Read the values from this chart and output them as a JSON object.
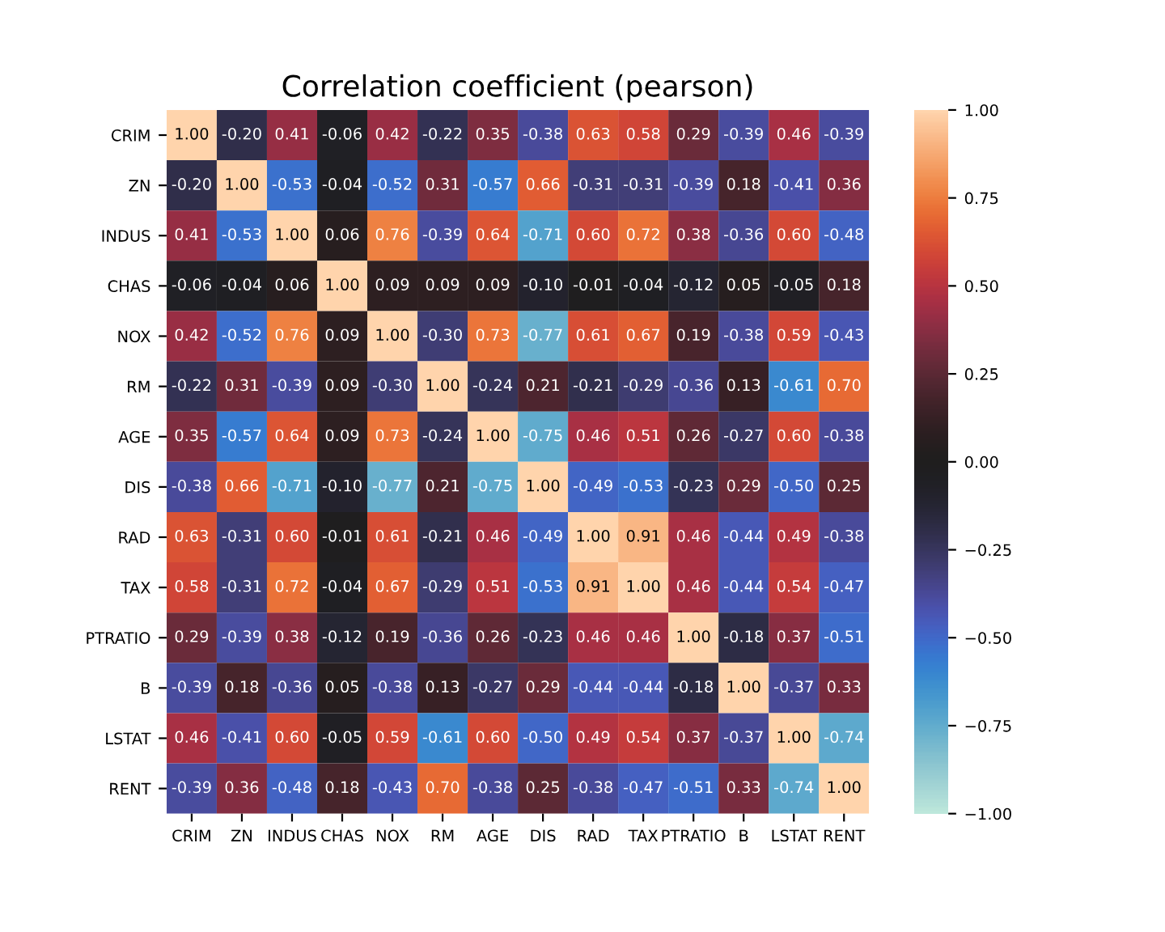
{
  "chart_data": {
    "type": "heatmap",
    "title": "Correlation coefficient (pearson)",
    "categories": [
      "CRIM",
      "ZN",
      "INDUS",
      "CHAS",
      "NOX",
      "RM",
      "AGE",
      "DIS",
      "RAD",
      "TAX",
      "PTRATIO",
      "B",
      "LSTAT",
      "RENT"
    ],
    "y_categories": [
      "CRIM",
      "ZN",
      "INDUS",
      "CHAS",
      "NOX",
      "RM",
      "AGE",
      "DIS",
      "RAD",
      "TAX",
      "PTRATIO",
      "B",
      "LSTAT",
      "RENT"
    ],
    "cells": [
      [
        1.0,
        -0.2,
        0.41,
        -0.06,
        0.42,
        -0.22,
        0.35,
        -0.38,
        0.63,
        0.58,
        0.29,
        -0.39,
        0.46,
        -0.39
      ],
      [
        -0.2,
        1.0,
        -0.53,
        -0.04,
        -0.52,
        0.31,
        -0.57,
        0.66,
        -0.31,
        -0.31,
        -0.39,
        0.18,
        -0.41,
        0.36
      ],
      [
        0.41,
        -0.53,
        1.0,
        0.06,
        0.76,
        -0.39,
        0.64,
        -0.71,
        0.6,
        0.72,
        0.38,
        -0.36,
        0.6,
        -0.48
      ],
      [
        -0.06,
        -0.04,
        0.06,
        1.0,
        0.09,
        0.09,
        0.09,
        -0.1,
        -0.01,
        -0.04,
        -0.12,
        0.05,
        -0.05,
        0.18
      ],
      [
        0.42,
        -0.52,
        0.76,
        0.09,
        1.0,
        -0.3,
        0.73,
        -0.77,
        0.61,
        0.67,
        0.19,
        -0.38,
        0.59,
        -0.43
      ],
      [
        -0.22,
        0.31,
        -0.39,
        0.09,
        -0.3,
        1.0,
        -0.24,
        0.21,
        -0.21,
        -0.29,
        -0.36,
        0.13,
        -0.61,
        0.7
      ],
      [
        0.35,
        -0.57,
        0.64,
        0.09,
        0.73,
        -0.24,
        1.0,
        -0.75,
        0.46,
        0.51,
        0.26,
        -0.27,
        0.6,
        -0.38
      ],
      [
        -0.38,
        0.66,
        -0.71,
        -0.1,
        -0.77,
        0.21,
        -0.75,
        1.0,
        -0.49,
        -0.53,
        -0.23,
        0.29,
        -0.5,
        0.25
      ],
      [
        0.63,
        -0.31,
        0.6,
        -0.01,
        0.61,
        -0.21,
        0.46,
        -0.49,
        1.0,
        0.91,
        0.46,
        -0.44,
        0.49,
        -0.38
      ],
      [
        0.58,
        -0.31,
        0.72,
        -0.04,
        0.67,
        -0.29,
        0.51,
        -0.53,
        0.91,
        1.0,
        0.46,
        -0.44,
        0.54,
        -0.47
      ],
      [
        0.29,
        -0.39,
        0.38,
        -0.12,
        0.19,
        -0.36,
        0.26,
        -0.23,
        0.46,
        0.46,
        1.0,
        -0.18,
        0.37,
        -0.51
      ],
      [
        -0.39,
        0.18,
        -0.36,
        0.05,
        -0.38,
        0.13,
        -0.27,
        0.29,
        -0.44,
        -0.44,
        -0.18,
        1.0,
        -0.37,
        0.33
      ],
      [
        0.46,
        -0.41,
        0.6,
        -0.05,
        0.59,
        -0.61,
        0.6,
        -0.5,
        0.49,
        0.54,
        0.37,
        -0.37,
        1.0,
        -0.74
      ],
      [
        -0.39,
        0.36,
        -0.48,
        0.18,
        -0.43,
        0.7,
        -0.38,
        0.25,
        -0.38,
        -0.47,
        -0.51,
        0.33,
        -0.74,
        1.0
      ]
    ],
    "cell_labels": [
      [
        "1.00",
        "-0.20",
        "0.41",
        "-0.06",
        "0.42",
        "-0.22",
        "0.35",
        "-0.38",
        "0.63",
        "0.58",
        "0.29",
        "-0.39",
        "0.46",
        "-0.39"
      ],
      [
        "-0.20",
        "1.00",
        "-0.53",
        "-0.04",
        "-0.52",
        "0.31",
        "-0.57",
        "0.66",
        "-0.31",
        "-0.31",
        "-0.39",
        "0.18",
        "-0.41",
        "0.36"
      ],
      [
        "0.41",
        "-0.53",
        "1.00",
        "0.06",
        "0.76",
        "-0.39",
        "0.64",
        "-0.71",
        "0.60",
        "0.72",
        "0.38",
        "-0.36",
        "0.60",
        "-0.48"
      ],
      [
        "-0.06",
        "-0.04",
        "0.06",
        "1.00",
        "0.09",
        "0.09",
        "0.09",
        "-0.10",
        "-0.01",
        "-0.04",
        "-0.12",
        "0.05",
        "-0.05",
        "0.18"
      ],
      [
        "0.42",
        "-0.52",
        "0.76",
        "0.09",
        "1.00",
        "-0.30",
        "0.73",
        "-0.77",
        "0.61",
        "0.67",
        "0.19",
        "-0.38",
        "0.59",
        "-0.43"
      ],
      [
        "-0.22",
        "0.31",
        "-0.39",
        "0.09",
        "-0.30",
        "1.00",
        "-0.24",
        "0.21",
        "-0.21",
        "-0.29",
        "-0.36",
        "0.13",
        "-0.61",
        "0.70"
      ],
      [
        "0.35",
        "-0.57",
        "0.64",
        "0.09",
        "0.73",
        "-0.24",
        "1.00",
        "-0.75",
        "0.46",
        "0.51",
        "0.26",
        "-0.27",
        "0.60",
        "-0.38"
      ],
      [
        "-0.38",
        "0.66",
        "-0.71",
        "-0.10",
        "-0.77",
        "0.21",
        "-0.75",
        "1.00",
        "-0.49",
        "-0.53",
        "-0.23",
        "0.29",
        "-0.50",
        "0.25"
      ],
      [
        "0.63",
        "-0.31",
        "0.60",
        "-0.01",
        "0.61",
        "-0.21",
        "0.46",
        "-0.49",
        "1.00",
        "0.91",
        "0.46",
        "-0.44",
        "0.49",
        "-0.38"
      ],
      [
        "0.58",
        "-0.31",
        "0.72",
        "-0.04",
        "0.67",
        "-0.29",
        "0.51",
        "-0.53",
        "0.91",
        "1.00",
        "0.46",
        "-0.44",
        "0.54",
        "-0.47"
      ],
      [
        "0.29",
        "-0.39",
        "0.38",
        "-0.12",
        "0.19",
        "-0.36",
        "0.26",
        "-0.23",
        "0.46",
        "0.46",
        "1.00",
        "-0.18",
        "0.37",
        "-0.51"
      ],
      [
        "-0.39",
        "0.18",
        "-0.36",
        "0.05",
        "-0.38",
        "0.13",
        "-0.27",
        "0.29",
        "-0.44",
        "-0.44",
        "-0.18",
        "1.00",
        "-0.37",
        "0.33"
      ],
      [
        "0.46",
        "-0.41",
        "0.60",
        "-0.05",
        "0.59",
        "-0.61",
        "0.60",
        "-0.50",
        "0.49",
        "0.54",
        "0.37",
        "-0.37",
        "1.00",
        "-0.74"
      ],
      [
        "-0.39",
        "0.36",
        "-0.48",
        "0.18",
        "-0.43",
        "0.70",
        "-0.38",
        "0.25",
        "-0.38",
        "-0.47",
        "-0.51",
        "0.33",
        "-0.74",
        "1.00"
      ]
    ],
    "clim": [
      -1.0,
      1.0
    ],
    "cticks": [
      {
        "value": -1.0,
        "label": "−1.00"
      },
      {
        "value": -0.75,
        "label": "−0.75"
      },
      {
        "value": -0.5,
        "label": "−0.50"
      },
      {
        "value": -0.25,
        "label": "−0.25"
      },
      {
        "value": 0.0,
        "label": "0.00"
      },
      {
        "value": 0.25,
        "label": "0.25"
      },
      {
        "value": 0.5,
        "label": "0.50"
      },
      {
        "value": 0.75,
        "label": "0.75"
      },
      {
        "value": 1.0,
        "label": "1.00"
      }
    ]
  }
}
